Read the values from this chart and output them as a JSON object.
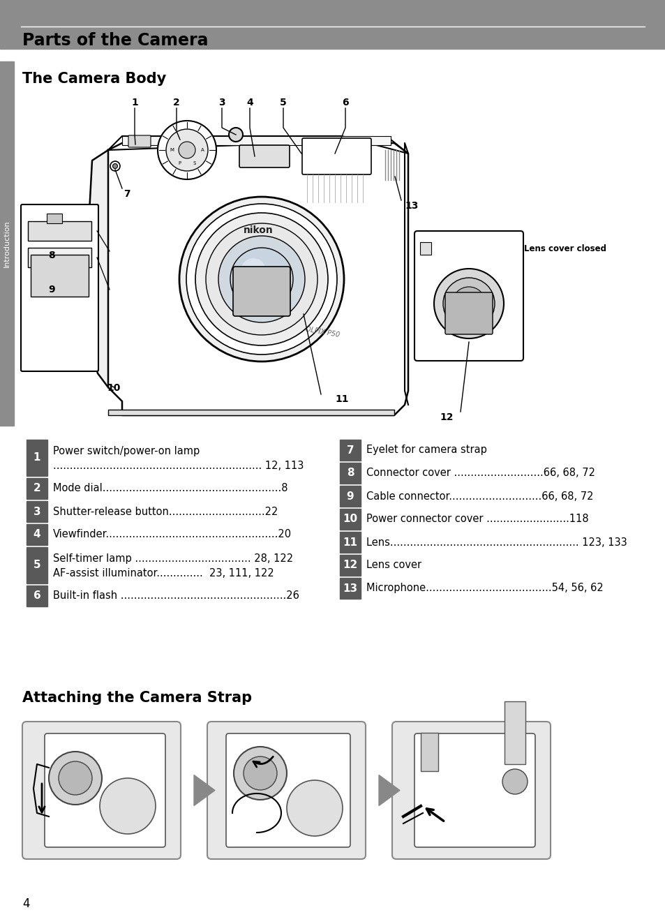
{
  "bg_color": "#ffffff",
  "header_bg": "#8c8c8c",
  "header_text": "Parts of the Camera",
  "section1_title": "The Camera Body",
  "section2_title": "Attaching the Camera Strap",
  "sidebar_color": "#8c8c8c",
  "sidebar_text": "Introduction",
  "num_badge_color": "#595959",
  "page_number": "4",
  "left_items": [
    {
      "num": "1",
      "line1": "Power switch/power-on lamp",
      "line2": "............................................................... 12, 113"
    },
    {
      "num": "2",
      "line1": "Mode dial......................................................8",
      "line2": null
    },
    {
      "num": "3",
      "line1": "Shutter-release button.............................22",
      "line2": null
    },
    {
      "num": "4",
      "line1": "Viewfinder....................................................20",
      "line2": null
    },
    {
      "num": "5",
      "line1": "Self-timer lamp ................................... 28, 122",
      "line2": "AF-assist illuminator..............  23, 111, 122"
    },
    {
      "num": "6",
      "line1": "Built-in flash ..................................................26",
      "line2": null
    }
  ],
  "right_items": [
    {
      "num": "7",
      "line1": "Eyelet for camera strap",
      "line2": null
    },
    {
      "num": "8",
      "line1": "Connector cover ...........................66, 68, 72",
      "line2": null
    },
    {
      "num": "9",
      "line1": "Cable connector............................66, 68, 72",
      "line2": null
    },
    {
      "num": "10",
      "line1": "Power connector cover .........................118",
      "line2": null
    },
    {
      "num": "11",
      "line1": "Lens......................................................... 123, 133",
      "line2": null
    },
    {
      "num": "12",
      "line1": "Lens cover",
      "line2": null
    },
    {
      "num": "13",
      "line1": "Microphone......................................54, 56, 62",
      "line2": null
    }
  ]
}
